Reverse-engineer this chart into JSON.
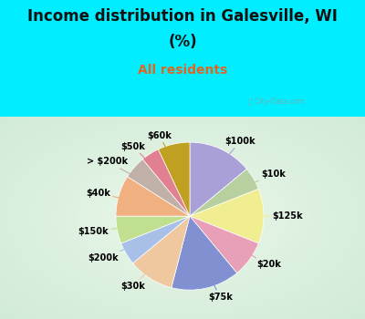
{
  "title_line1": "Income distribution in Galesville, WI",
  "title_line2": "(%)",
  "subtitle": "All residents",
  "title_color": "#111111",
  "subtitle_color": "#dd6622",
  "bg_cyan": "#00eeff",
  "labels": [
    "$100k",
    "$10k",
    "$125k",
    "$20k",
    "$75k",
    "$30k",
    "$200k",
    "$150k",
    "$40k",
    "> $200k",
    "$50k",
    "$60k"
  ],
  "values": [
    14,
    5,
    12,
    8,
    15,
    10,
    5,
    6,
    9,
    5,
    4,
    7
  ],
  "colors": [
    "#aaa0d8",
    "#b8cfa0",
    "#f0ee90",
    "#e8a0b8",
    "#8090d0",
    "#f0c8a0",
    "#a8c0e8",
    "#c0e090",
    "#f0b080",
    "#c0b0a8",
    "#e08090",
    "#c0a020"
  ],
  "start_angle": 90,
  "label_fontsize": 7,
  "title_fontsize": 12,
  "subtitle_fontsize": 10,
  "watermark_text": "ⓘ City-Data.com"
}
